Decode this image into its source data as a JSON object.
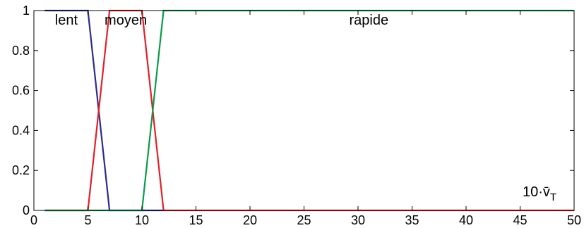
{
  "chart_data": {
    "type": "line",
    "xlim": [
      0,
      50
    ],
    "ylim": [
      0,
      1
    ],
    "grid": false,
    "x_ticks": [
      "0",
      "5",
      "10",
      "15",
      "20",
      "25",
      "30",
      "35",
      "40",
      "45",
      "50"
    ],
    "y_ticks": [
      "0",
      "0.2",
      "0.4",
      "0.6",
      "0.8",
      "1"
    ],
    "x_axis_label": {
      "prefix": "10·",
      "symbol": "v̄",
      "subscript": "T"
    },
    "series": [
      {
        "name": "lent",
        "color": "#2b2b8f",
        "x": [
          1,
          5,
          7,
          12
        ],
        "y": [
          1,
          1,
          0,
          0
        ]
      },
      {
        "name": "moyen",
        "color": "#e0202a",
        "x": [
          1,
          5,
          7,
          10,
          12,
          50
        ],
        "y": [
          0,
          0,
          1,
          1,
          0,
          0
        ]
      },
      {
        "name": "rapide",
        "color": "#0c9a4a",
        "x": [
          1,
          10,
          12,
          50
        ],
        "y": [
          0,
          0,
          1,
          1
        ]
      }
    ]
  }
}
